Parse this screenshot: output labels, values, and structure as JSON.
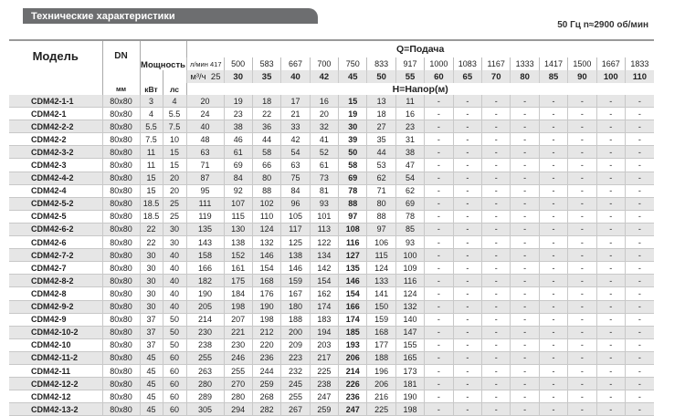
{
  "header": {
    "title": "Технические характеристики",
    "frequency": "50 Гц  n≈2900 об/мин"
  },
  "table": {
    "model_label": "Модель",
    "dn_label": "DN",
    "dn_unit": "мм",
    "power_label": "Мощность",
    "kw_unit": "кВт",
    "hp_unit": "лс",
    "q_label": "Q=Подача",
    "h_label": "H=Напор(м)",
    "lpm_unit": "л/мин",
    "m3h_unit": "м³/ч",
    "lpm": [
      "417",
      "500",
      "583",
      "667",
      "700",
      "750",
      "833",
      "917",
      "1000",
      "1083",
      "1167",
      "1333",
      "1417",
      "1500",
      "1667",
      "1833"
    ],
    "m3h": [
      "25",
      "30",
      "35",
      "40",
      "42",
      "45",
      "50",
      "55",
      "60",
      "65",
      "70",
      "80",
      "85",
      "90",
      "100",
      "110"
    ],
    "bold_column": 5,
    "rows": [
      {
        "model": "CDM42-1-1",
        "dn": "80x80",
        "kw": "3",
        "hp": "4",
        "h": [
          "20",
          "19",
          "18",
          "17",
          "16",
          "15",
          "13",
          "11",
          "-",
          "-",
          "-",
          "-",
          "-",
          "-",
          "-",
          "-"
        ]
      },
      {
        "model": "CDM42-1",
        "dn": "80x80",
        "kw": "4",
        "hp": "5.5",
        "h": [
          "24",
          "23",
          "22",
          "21",
          "20",
          "19",
          "18",
          "16",
          "-",
          "-",
          "-",
          "-",
          "-",
          "-",
          "-",
          "-"
        ]
      },
      {
        "model": "CDM42-2-2",
        "dn": "80x80",
        "kw": "5.5",
        "hp": "7.5",
        "h": [
          "40",
          "38",
          "36",
          "33",
          "32",
          "30",
          "27",
          "23",
          "-",
          "-",
          "-",
          "-",
          "-",
          "-",
          "-",
          "-"
        ]
      },
      {
        "model": "CDM42-2",
        "dn": "80x80",
        "kw": "7.5",
        "hp": "10",
        "h": [
          "48",
          "46",
          "44",
          "42",
          "41",
          "39",
          "35",
          "31",
          "-",
          "-",
          "-",
          "-",
          "-",
          "-",
          "-",
          "-"
        ]
      },
      {
        "model": "CDM42-3-2",
        "dn": "80x80",
        "kw": "11",
        "hp": "15",
        "h": [
          "63",
          "61",
          "58",
          "54",
          "52",
          "50",
          "44",
          "38",
          "-",
          "-",
          "-",
          "-",
          "-",
          "-",
          "-",
          "-"
        ]
      },
      {
        "model": "CDM42-3",
        "dn": "80x80",
        "kw": "11",
        "hp": "15",
        "h": [
          "71",
          "69",
          "66",
          "63",
          "61",
          "58",
          "53",
          "47",
          "-",
          "-",
          "-",
          "-",
          "-",
          "-",
          "-",
          "-"
        ]
      },
      {
        "model": "CDM42-4-2",
        "dn": "80x80",
        "kw": "15",
        "hp": "20",
        "h": [
          "87",
          "84",
          "80",
          "75",
          "73",
          "69",
          "62",
          "54",
          "-",
          "-",
          "-",
          "-",
          "-",
          "-",
          "-",
          "-"
        ]
      },
      {
        "model": "CDM42-4",
        "dn": "80x80",
        "kw": "15",
        "hp": "20",
        "h": [
          "95",
          "92",
          "88",
          "84",
          "81",
          "78",
          "71",
          "62",
          "-",
          "-",
          "-",
          "-",
          "-",
          "-",
          "-",
          "-"
        ]
      },
      {
        "model": "CDM42-5-2",
        "dn": "80x80",
        "kw": "18.5",
        "hp": "25",
        "h": [
          "111",
          "107",
          "102",
          "96",
          "93",
          "88",
          "80",
          "69",
          "-",
          "-",
          "-",
          "-",
          "-",
          "-",
          "-",
          "-"
        ]
      },
      {
        "model": "CDM42-5",
        "dn": "80x80",
        "kw": "18.5",
        "hp": "25",
        "h": [
          "119",
          "115",
          "110",
          "105",
          "101",
          "97",
          "88",
          "78",
          "-",
          "-",
          "-",
          "-",
          "-",
          "-",
          "-",
          "-"
        ]
      },
      {
        "model": "CDM42-6-2",
        "dn": "80x80",
        "kw": "22",
        "hp": "30",
        "h": [
          "135",
          "130",
          "124",
          "117",
          "113",
          "108",
          "97",
          "85",
          "-",
          "-",
          "-",
          "-",
          "-",
          "-",
          "-",
          "-"
        ]
      },
      {
        "model": "CDM42-6",
        "dn": "80x80",
        "kw": "22",
        "hp": "30",
        "h": [
          "143",
          "138",
          "132",
          "125",
          "122",
          "116",
          "106",
          "93",
          "-",
          "-",
          "-",
          "-",
          "-",
          "-",
          "-",
          "-"
        ]
      },
      {
        "model": "CDM42-7-2",
        "dn": "80x80",
        "kw": "30",
        "hp": "40",
        "h": [
          "158",
          "152",
          "146",
          "138",
          "134",
          "127",
          "115",
          "100",
          "-",
          "-",
          "-",
          "-",
          "-",
          "-",
          "-",
          "-"
        ]
      },
      {
        "model": "CDM42-7",
        "dn": "80x80",
        "kw": "30",
        "hp": "40",
        "h": [
          "166",
          "161",
          "154",
          "146",
          "142",
          "135",
          "124",
          "109",
          "-",
          "-",
          "-",
          "-",
          "-",
          "-",
          "-",
          "-"
        ]
      },
      {
        "model": "CDM42-8-2",
        "dn": "80x80",
        "kw": "30",
        "hp": "40",
        "h": [
          "182",
          "175",
          "168",
          "159",
          "154",
          "146",
          "133",
          "116",
          "-",
          "-",
          "-",
          "-",
          "-",
          "-",
          "-",
          "-"
        ]
      },
      {
        "model": "CDM42-8",
        "dn": "80x80",
        "kw": "30",
        "hp": "40",
        "h": [
          "190",
          "184",
          "176",
          "167",
          "162",
          "154",
          "141",
          "124",
          "-",
          "-",
          "-",
          "-",
          "-",
          "-",
          "-",
          "-"
        ]
      },
      {
        "model": "CDM42-9-2",
        "dn": "80x80",
        "kw": "30",
        "hp": "40",
        "h": [
          "205",
          "198",
          "190",
          "180",
          "174",
          "166",
          "150",
          "132",
          "-",
          "-",
          "-",
          "-",
          "-",
          "-",
          "-",
          "-"
        ]
      },
      {
        "model": "CDM42-9",
        "dn": "80x80",
        "kw": "37",
        "hp": "50",
        "h": [
          "214",
          "207",
          "198",
          "188",
          "183",
          "174",
          "159",
          "140",
          "-",
          "-",
          "-",
          "-",
          "-",
          "-",
          "-",
          "-"
        ]
      },
      {
        "model": "CDM42-10-2",
        "dn": "80x80",
        "kw": "37",
        "hp": "50",
        "h": [
          "230",
          "221",
          "212",
          "200",
          "194",
          "185",
          "168",
          "147",
          "-",
          "-",
          "-",
          "-",
          "-",
          "-",
          "-",
          "-"
        ]
      },
      {
        "model": "CDM42-10",
        "dn": "80x80",
        "kw": "37",
        "hp": "50",
        "h": [
          "238",
          "230",
          "220",
          "209",
          "203",
          "193",
          "177",
          "155",
          "-",
          "-",
          "-",
          "-",
          "-",
          "-",
          "-",
          "-"
        ]
      },
      {
        "model": "CDM42-11-2",
        "dn": "80x80",
        "kw": "45",
        "hp": "60",
        "h": [
          "255",
          "246",
          "236",
          "223",
          "217",
          "206",
          "188",
          "165",
          "-",
          "-",
          "-",
          "-",
          "-",
          "-",
          "-",
          "-"
        ]
      },
      {
        "model": "CDM42-11",
        "dn": "80x80",
        "kw": "45",
        "hp": "60",
        "h": [
          "263",
          "255",
          "244",
          "232",
          "225",
          "214",
          "196",
          "173",
          "-",
          "-",
          "-",
          "-",
          "-",
          "-",
          "-",
          "-"
        ]
      },
      {
        "model": "CDM42-12-2",
        "dn": "80x80",
        "kw": "45",
        "hp": "60",
        "h": [
          "280",
          "270",
          "259",
          "245",
          "238",
          "226",
          "206",
          "181",
          "-",
          "-",
          "-",
          "-",
          "-",
          "-",
          "-",
          "-"
        ]
      },
      {
        "model": "CDM42-12",
        "dn": "80x80",
        "kw": "45",
        "hp": "60",
        "h": [
          "289",
          "280",
          "268",
          "255",
          "247",
          "236",
          "216",
          "190",
          "-",
          "-",
          "-",
          "-",
          "-",
          "-",
          "-",
          "-"
        ]
      },
      {
        "model": "CDM42-13-2",
        "dn": "80x80",
        "kw": "45",
        "hp": "60",
        "h": [
          "305",
          "294",
          "282",
          "267",
          "259",
          "247",
          "225",
          "198",
          "-",
          "-",
          "-",
          "-",
          "-",
          "-",
          "-",
          "-"
        ]
      }
    ]
  }
}
